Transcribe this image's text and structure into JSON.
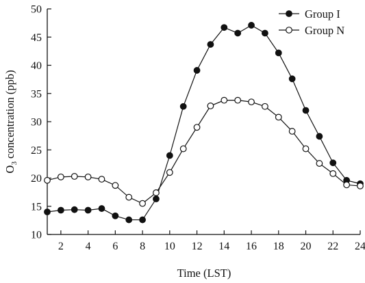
{
  "chart_data": {
    "type": "line",
    "xlabel": "Time (LST)",
    "ylabel_parts": {
      "prefix": "O",
      "sub": "3",
      "suffix": " concentration (ppb)"
    },
    "xlim": [
      1,
      24
    ],
    "ylim": [
      10,
      50
    ],
    "xticks": [
      2,
      4,
      6,
      8,
      10,
      12,
      14,
      16,
      18,
      20,
      22,
      24
    ],
    "yticks": [
      10,
      15,
      20,
      25,
      30,
      35,
      40,
      45,
      50
    ],
    "x": [
      1,
      2,
      3,
      4,
      5,
      6,
      7,
      8,
      9,
      10,
      11,
      12,
      13,
      14,
      15,
      16,
      17,
      18,
      19,
      20,
      21,
      22,
      23,
      24
    ],
    "legend_position": "top-right",
    "series": [
      {
        "name": "Group I",
        "marker": "filled-circle",
        "values": [
          14.0,
          14.3,
          14.4,
          14.3,
          14.6,
          13.3,
          12.6,
          12.6,
          16.3,
          24.0,
          32.7,
          39.1,
          43.7,
          46.7,
          45.7,
          47.1,
          45.7,
          42.2,
          37.6,
          32.0,
          27.4,
          22.7,
          19.6,
          19.0
        ]
      },
      {
        "name": "Group N",
        "marker": "open-circle",
        "values": [
          19.6,
          20.2,
          20.3,
          20.2,
          19.8,
          18.7,
          16.6,
          15.5,
          17.4,
          21.0,
          25.2,
          29.0,
          32.8,
          33.8,
          33.8,
          33.5,
          32.7,
          30.8,
          28.3,
          25.2,
          22.6,
          20.8,
          18.8,
          18.6
        ]
      }
    ]
  }
}
